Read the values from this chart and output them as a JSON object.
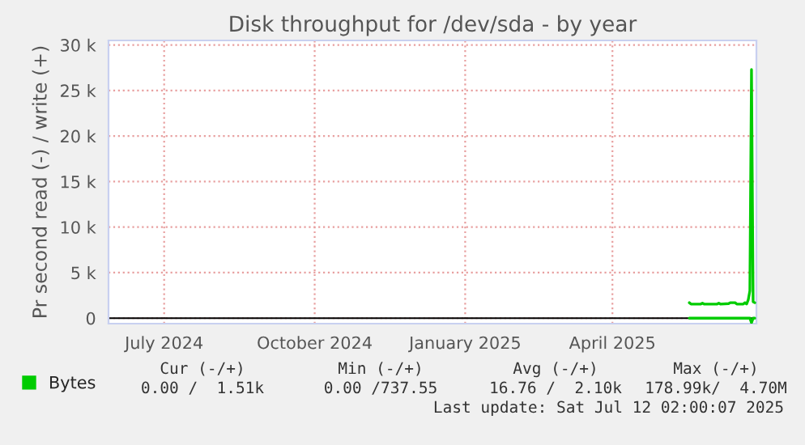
{
  "chart_data": {
    "type": "line",
    "title": "Disk throughput for /dev/sda - by year",
    "ylabel": "Pr second read (-) / write (+)",
    "series": [
      {
        "name": "Bytes",
        "color": "#00cc00",
        "x": [
          "2025-06-01",
          "2025-06-02",
          "2025-06-08",
          "2025-06-09",
          "2025-06-10",
          "2025-06-18",
          "2025-06-19",
          "2025-06-20",
          "2025-06-25",
          "2025-06-26",
          "2025-06-29",
          "2025-06-30",
          "2025-07-04",
          "2025-07-05",
          "2025-07-06",
          "2025-07-07",
          "2025-07-08",
          "2025-07-09",
          "2025-07-10",
          "2025-07-11"
        ],
        "values": [
          1700,
          1550,
          1550,
          1650,
          1550,
          1550,
          1650,
          1550,
          1600,
          1700,
          1700,
          1550,
          1550,
          1700,
          1550,
          2000,
          3000,
          27300,
          1800,
          1700
        ]
      },
      {
        "color": "#00cc00",
        "x": [
          "2025-06-01",
          "2025-07-08",
          "2025-07-09",
          "2025-07-10",
          "2025-07-11"
        ],
        "values": [
          0,
          0,
          -500,
          0,
          0
        ]
      }
    ],
    "xlim": [
      "2024-06-11",
      "2025-07-12"
    ],
    "xticks": [
      {
        "value": "2024-07-15",
        "label": "July 2024"
      },
      {
        "value": "2024-10-15",
        "label": "October 2024"
      },
      {
        "value": "2025-01-15",
        "label": "January 2025"
      },
      {
        "value": "2025-04-15",
        "label": "April 2025"
      }
    ],
    "ylim": [
      -600,
      30500
    ],
    "yticks": [
      {
        "value": 0,
        "label": "0"
      },
      {
        "value": 5000,
        "label": "5 k"
      },
      {
        "value": 10000,
        "label": "10 k"
      },
      {
        "value": 15000,
        "label": "15 k"
      },
      {
        "value": 20000,
        "label": "20 k"
      },
      {
        "value": 25000,
        "label": "25 k"
      },
      {
        "value": 30000,
        "label": "30 k"
      }
    ],
    "ref_lines": [
      {
        "axis": "y",
        "value": 0,
        "color": "#000000"
      }
    ],
    "grid": true,
    "legend": "bottom left",
    "annotations": [
      "Cur (-/+)",
      "Min (-/+)",
      "Avg (-/+)",
      "Max (-/+)",
      "0.00 /  1.51k",
      "0.00 /737.55",
      "16.76 /  2.10k",
      "178.99k/  4.70M",
      "Last update: Sat Jul 12 02:00:07 2025"
    ]
  }
}
